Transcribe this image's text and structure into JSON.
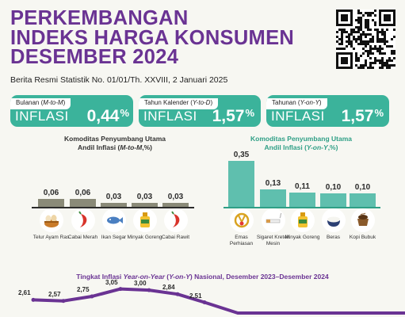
{
  "header": {
    "title_line1": "PERKEMBANGAN",
    "title_line2": "INDEKS HARGA KONSUMEN",
    "title_line3": "DESEMBER 2024",
    "subtitle": "Berita Resmi Statistik No. 01/01/Th. XXVIII, 2 Januari 2025"
  },
  "panels": [
    {
      "caption_prefix": "Bulanan (",
      "caption_em": "M-to-M",
      "caption_suffix": ")",
      "label": "INFLASI",
      "value": "0,44",
      "unit": "%",
      "color": "#3bb39b"
    },
    {
      "caption_prefix": "Tahun Kalender (",
      "caption_em": "Y-to-D",
      "caption_suffix": ")",
      "label": "INFLASI",
      "value": "1,57",
      "unit": "%",
      "color": "#3bb39b"
    },
    {
      "caption_prefix": "Tahunan (",
      "caption_em": "Y-on-Y",
      "caption_suffix": ")",
      "label": "INFLASI",
      "value": "1,57",
      "unit": "%",
      "color": "#3bb39b"
    }
  ],
  "colors": {
    "purple": "#6a3393",
    "teal": "#3bb39b",
    "teal_dark": "#2f9f86",
    "bar_m": "#8a8a78",
    "bar_y": "#5fbfae",
    "line": "#6a3393"
  },
  "chart_data": [
    {
      "type": "bar",
      "title_line1": "Komoditas Penyumbang Utama",
      "title_line2_prefix": "Andil Inflasi (",
      "title_line2_em": "M-to-M",
      "title_line2_suffix": ",%)",
      "categories": [
        "Telur Ayam Ras",
        "Cabai Merah",
        "Ikan Segar",
        "Minyak Goreng",
        "Cabai Rawit"
      ],
      "values": [
        0.06,
        0.06,
        0.03,
        0.03,
        0.03
      ],
      "value_labels": [
        "0,06",
        "0,06",
        "0,03",
        "0,03",
        "0,03"
      ],
      "icons": [
        "egg-basket-icon",
        "chili-icon",
        "fish-icon",
        "cooking-oil-icon",
        "chili-icon"
      ]
    },
    {
      "type": "bar",
      "title_line1": "Komoditas Penyumbang Utama",
      "title_line2_prefix": "Andil Inflasi (",
      "title_line2_em": "Y-on-Y",
      "title_line2_suffix": ",%)",
      "categories": [
        "Emas Perhiasan",
        "Sigaret Kretek Mesin",
        "Minyak Goreng",
        "Beras",
        "Kopi Bubuk"
      ],
      "values": [
        0.35,
        0.13,
        0.11,
        0.1,
        0.1
      ],
      "value_labels": [
        "0,35",
        "0,13",
        "0,11",
        "0,10",
        "0,10"
      ],
      "icons": [
        "jewelry-icon",
        "cigarette-icon",
        "cooking-oil-icon",
        "rice-bowl-icon",
        "coffee-icon"
      ]
    },
    {
      "type": "line",
      "title_prefix": "Tingkat Inflasi ",
      "title_em1": "Year-on-Year",
      "title_mid": " (",
      "title_em2": "Y-on-Y",
      "title_suffix": ") Nasional, Desember 2023–Desember  2024",
      "values": [
        2.61,
        2.57,
        2.75,
        3.05,
        3.0,
        2.84,
        2.51
      ],
      "value_labels": [
        "2,61",
        "2,57",
        "2,75",
        "3,05",
        "3,00",
        "2,84",
        "2,51"
      ]
    }
  ]
}
